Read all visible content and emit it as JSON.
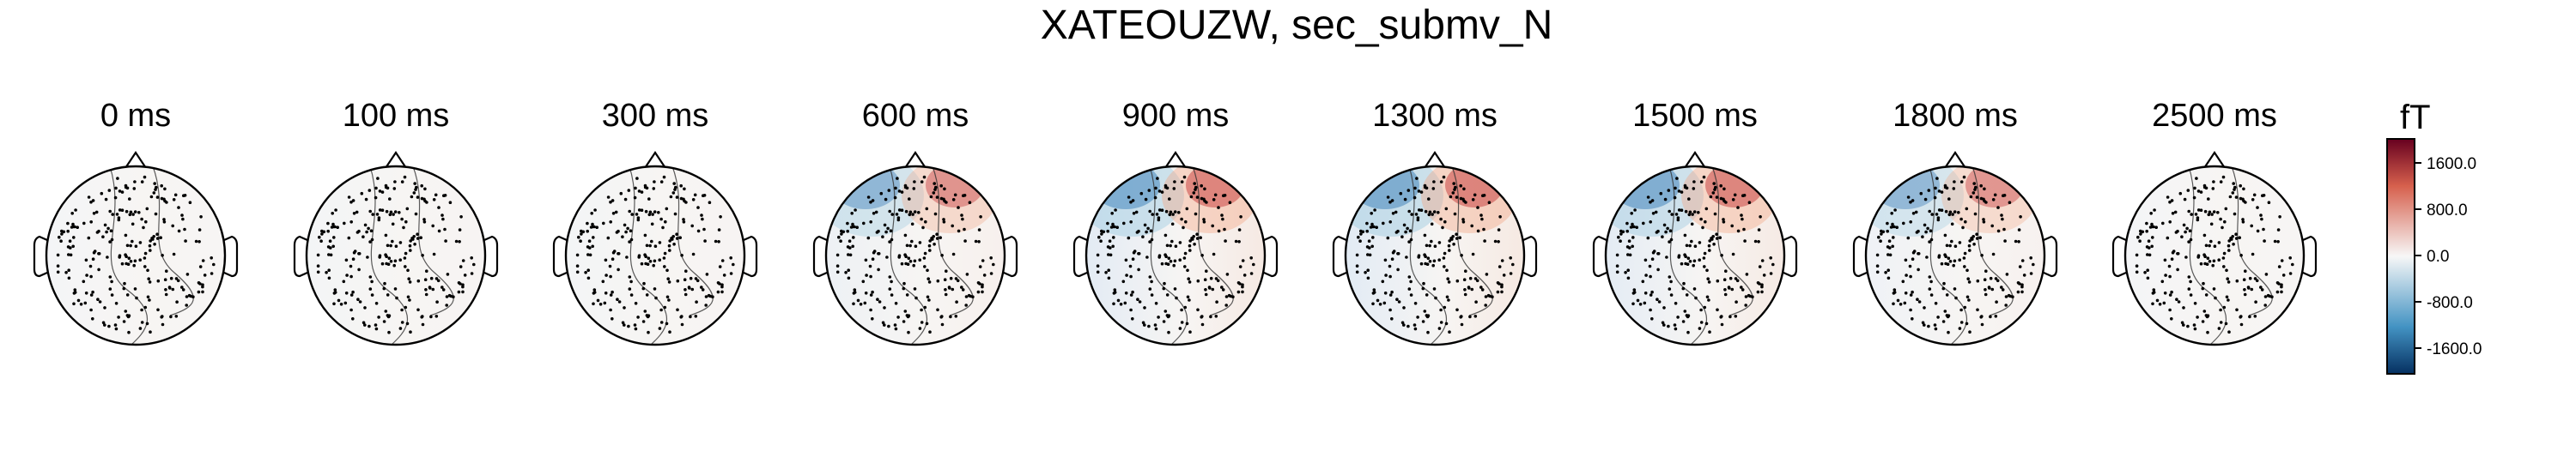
{
  "figure": {
    "title": "XATEOUZW, sec_submv_N",
    "times": [
      "0 ms",
      "100 ms",
      "300 ms",
      "600 ms",
      "900 ms",
      "1300 ms",
      "1500 ms",
      "1800 ms",
      "2500 ms"
    ]
  },
  "colorbar": {
    "unit": "fT",
    "ticks": [
      "1600.0",
      "800.0",
      "0.0",
      "-800.0",
      "-1600.0"
    ],
    "range": [
      -2000,
      2000
    ],
    "colors": {
      "max": "#67001f",
      "pos": "#d6604d",
      "zero": "#f7f7f7",
      "neg": "#4393c3",
      "min": "#053061"
    }
  }
}
